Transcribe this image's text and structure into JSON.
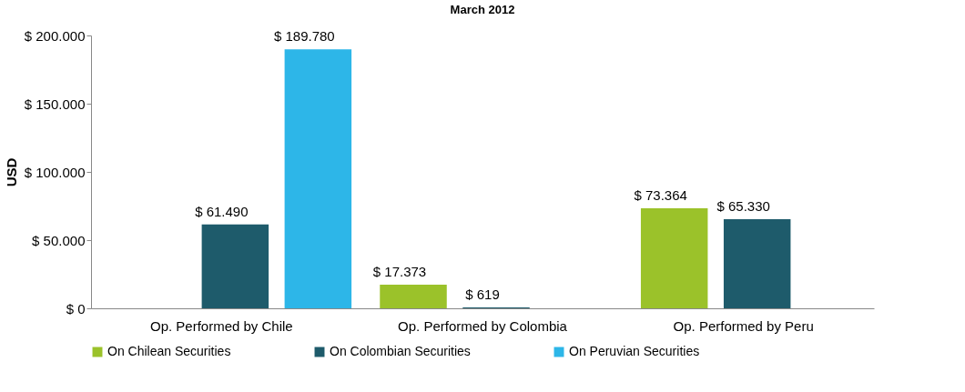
{
  "chart_data": {
    "type": "bar",
    "title": "March 2012",
    "ylabel": "USD",
    "categories": [
      "Op. Performed by Chile",
      "Op. Performed by Colombia",
      "Op. Performed by Peru"
    ],
    "series": [
      {
        "name": "On Chilean Securities",
        "color": "#9bc22a",
        "values": [
          null,
          17373,
          73364
        ],
        "value_labels": [
          null,
          "$ 17.373",
          "$ 73.364"
        ]
      },
      {
        "name": "On Colombian Securities",
        "color": "#1e5b6b",
        "values": [
          61490,
          619,
          65330
        ],
        "value_labels": [
          "$ 61.490",
          "$ 619",
          "$ 65.330"
        ]
      },
      {
        "name": "On Peruvian Securities",
        "color": "#2db6e8",
        "values": [
          189780,
          null,
          null
        ],
        "value_labels": [
          "$ 189.780",
          null,
          null
        ]
      }
    ],
    "ylim": [
      0,
      200000
    ],
    "yticks": [
      {
        "value": 0,
        "label": "$ 0"
      },
      {
        "value": 50000,
        "label": "$ 50.000"
      },
      {
        "value": 100000,
        "label": "$ 100.000"
      },
      {
        "value": 150000,
        "label": "$ 150.000"
      },
      {
        "value": 200000,
        "label": "$ 200.000"
      }
    ],
    "grid": false,
    "legend": "bottom"
  }
}
